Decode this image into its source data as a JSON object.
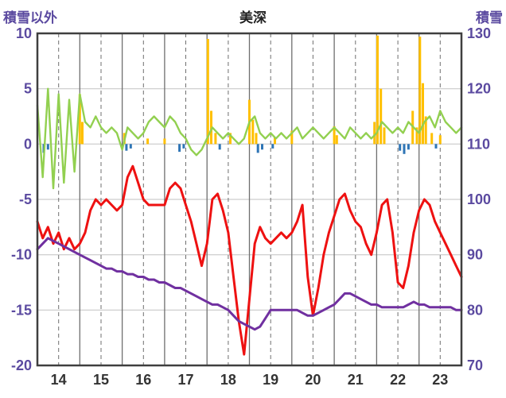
{
  "header": {
    "left_label": "積雪以外",
    "title": "美深",
    "right_label": "積雪"
  },
  "chart_data": {
    "type": "line",
    "title": "美深",
    "left_axis_label": "積雪以外",
    "right_axis_label": "積雪",
    "x_range": [
      14,
      24
    ],
    "x_tick_labels": [
      "14",
      "15",
      "16",
      "17",
      "18",
      "19",
      "20",
      "21",
      "22",
      "23"
    ],
    "left_ylim": [
      -20,
      10
    ],
    "left_yticks": [
      10,
      5,
      0,
      -5,
      -10,
      -15,
      -20
    ],
    "right_ylim": [
      70,
      130
    ],
    "right_yticks": [
      130,
      120,
      110,
      100,
      90,
      80,
      70
    ],
    "grid": true,
    "legend": "none",
    "colors": {
      "h_grid": "#c2c2c2",
      "v_grid": "#6f6f6f",
      "frame": "#3f3f3f",
      "axis_text": "#5b4aa0",
      "x_text": "#333333",
      "green": "#92d050",
      "red": "#ee1111",
      "purple": "#7030a0",
      "orange": "#ffc000",
      "blue": "#2e75b6"
    },
    "series": [
      {
        "name": "green-line",
        "axis": "left",
        "color": "#92d050",
        "width": 2.4,
        "points": [
          [
            14,
            3.5
          ],
          [
            14.125,
            -3
          ],
          [
            14.25,
            5
          ],
          [
            14.375,
            -4
          ],
          [
            14.5,
            4.5
          ],
          [
            14.625,
            -3.5
          ],
          [
            14.75,
            4
          ],
          [
            14.875,
            -2.5
          ],
          [
            15,
            4.5
          ],
          [
            15.125,
            2
          ],
          [
            15.25,
            1.5
          ],
          [
            15.375,
            2.5
          ],
          [
            15.5,
            1.5
          ],
          [
            15.625,
            1
          ],
          [
            15.75,
            1.5
          ],
          [
            15.875,
            1
          ],
          [
            16,
            -0.5
          ],
          [
            16.125,
            1.5
          ],
          [
            16.25,
            1
          ],
          [
            16.375,
            0.5
          ],
          [
            16.5,
            1
          ],
          [
            16.625,
            2
          ],
          [
            16.75,
            2.5
          ],
          [
            16.875,
            2
          ],
          [
            17,
            1.5
          ],
          [
            17.125,
            2.5
          ],
          [
            17.25,
            2
          ],
          [
            17.375,
            1
          ],
          [
            17.5,
            0.5
          ],
          [
            17.625,
            -0.5
          ],
          [
            17.75,
            -1
          ],
          [
            17.875,
            -0.5
          ],
          [
            18,
            0.5
          ],
          [
            18.125,
            1.5
          ],
          [
            18.25,
            1
          ],
          [
            18.375,
            0.5
          ],
          [
            18.5,
            1
          ],
          [
            18.625,
            0.5
          ],
          [
            18.75,
            0
          ],
          [
            18.875,
            0.5
          ],
          [
            19,
            2
          ],
          [
            19.125,
            2.5
          ],
          [
            19.25,
            1
          ],
          [
            19.375,
            0.5
          ],
          [
            19.5,
            1
          ],
          [
            19.625,
            0.5
          ],
          [
            19.75,
            1
          ],
          [
            19.875,
            0.5
          ],
          [
            20,
            1
          ],
          [
            20.125,
            1.5
          ],
          [
            20.25,
            0.5
          ],
          [
            20.375,
            1
          ],
          [
            20.5,
            1.5
          ],
          [
            20.625,
            1
          ],
          [
            20.75,
            0.5
          ],
          [
            20.875,
            1
          ],
          [
            21,
            1.5
          ],
          [
            21.125,
            1
          ],
          [
            21.25,
            0.5
          ],
          [
            21.375,
            1.5
          ],
          [
            21.5,
            1
          ],
          [
            21.625,
            0.5
          ],
          [
            21.75,
            1
          ],
          [
            21.875,
            0.5
          ],
          [
            22,
            1
          ],
          [
            22.125,
            2
          ],
          [
            22.25,
            1.5
          ],
          [
            22.375,
            1
          ],
          [
            22.5,
            1.5
          ],
          [
            22.625,
            1
          ],
          [
            22.75,
            2
          ],
          [
            22.875,
            1.5
          ],
          [
            23,
            1
          ],
          [
            23.125,
            2
          ],
          [
            23.25,
            2.5
          ],
          [
            23.375,
            1.5
          ],
          [
            23.5,
            3
          ],
          [
            23.625,
            2
          ],
          [
            23.75,
            1.5
          ],
          [
            23.875,
            1
          ],
          [
            24,
            1.5
          ]
        ]
      },
      {
        "name": "red-line",
        "axis": "left",
        "color": "#ee1111",
        "width": 3,
        "points": [
          [
            14,
            -7
          ],
          [
            14.125,
            -8.5
          ],
          [
            14.25,
            -7.5
          ],
          [
            14.375,
            -9
          ],
          [
            14.5,
            -8
          ],
          [
            14.625,
            -9.5
          ],
          [
            14.75,
            -8.5
          ],
          [
            14.875,
            -9.5
          ],
          [
            15,
            -9
          ],
          [
            15.125,
            -8
          ],
          [
            15.25,
            -6
          ],
          [
            15.375,
            -5
          ],
          [
            15.5,
            -5.5
          ],
          [
            15.625,
            -5
          ],
          [
            15.75,
            -5.5
          ],
          [
            15.875,
            -6
          ],
          [
            16,
            -5.5
          ],
          [
            16.125,
            -3
          ],
          [
            16.25,
            -2
          ],
          [
            16.375,
            -3.5
          ],
          [
            16.5,
            -5
          ],
          [
            16.625,
            -5.5
          ],
          [
            16.75,
            -5.5
          ],
          [
            16.875,
            -5.5
          ],
          [
            17,
            -5.5
          ],
          [
            17.125,
            -4
          ],
          [
            17.25,
            -3.5
          ],
          [
            17.375,
            -4
          ],
          [
            17.5,
            -5.5
          ],
          [
            17.625,
            -7
          ],
          [
            17.75,
            -9
          ],
          [
            17.875,
            -11
          ],
          [
            18,
            -9
          ],
          [
            18.125,
            -5
          ],
          [
            18.25,
            -4.5
          ],
          [
            18.375,
            -6
          ],
          [
            18.5,
            -8
          ],
          [
            18.625,
            -12
          ],
          [
            18.75,
            -16
          ],
          [
            18.875,
            -19
          ],
          [
            19,
            -14
          ],
          [
            19.125,
            -9
          ],
          [
            19.25,
            -7.5
          ],
          [
            19.375,
            -8.5
          ],
          [
            19.5,
            -9
          ],
          [
            19.625,
            -8.5
          ],
          [
            19.75,
            -8
          ],
          [
            19.875,
            -8.5
          ],
          [
            20,
            -8
          ],
          [
            20.125,
            -7
          ],
          [
            20.25,
            -5.5
          ],
          [
            20.375,
            -12
          ],
          [
            20.5,
            -15.5
          ],
          [
            20.625,
            -13
          ],
          [
            20.75,
            -10
          ],
          [
            20.875,
            -8
          ],
          [
            21,
            -6.5
          ],
          [
            21.125,
            -5
          ],
          [
            21.25,
            -4.5
          ],
          [
            21.375,
            -6
          ],
          [
            21.5,
            -7
          ],
          [
            21.625,
            -7.5
          ],
          [
            21.75,
            -9
          ],
          [
            21.875,
            -10
          ],
          [
            22,
            -8
          ],
          [
            22.125,
            -5.5
          ],
          [
            22.25,
            -5
          ],
          [
            22.375,
            -8
          ],
          [
            22.5,
            -12.5
          ],
          [
            22.625,
            -13
          ],
          [
            22.75,
            -11
          ],
          [
            22.875,
            -8
          ],
          [
            23,
            -6
          ],
          [
            23.125,
            -5
          ],
          [
            23.25,
            -5.5
          ],
          [
            23.375,
            -7
          ],
          [
            23.5,
            -8
          ],
          [
            23.625,
            -9
          ],
          [
            23.75,
            -10
          ],
          [
            23.875,
            -11
          ],
          [
            24,
            -12
          ]
        ]
      },
      {
        "name": "purple-line",
        "axis": "right",
        "color": "#7030a0",
        "width": 3,
        "points": [
          [
            14,
            91
          ],
          [
            14.125,
            92
          ],
          [
            14.25,
            93
          ],
          [
            14.375,
            92.5
          ],
          [
            14.5,
            92
          ],
          [
            14.625,
            91.5
          ],
          [
            14.75,
            91
          ],
          [
            14.875,
            90.5
          ],
          [
            15,
            90
          ],
          [
            15.125,
            89.5
          ],
          [
            15.25,
            89
          ],
          [
            15.375,
            88.5
          ],
          [
            15.5,
            88
          ],
          [
            15.625,
            87.5
          ],
          [
            15.75,
            87.5
          ],
          [
            15.875,
            87
          ],
          [
            16,
            87
          ],
          [
            16.125,
            86.5
          ],
          [
            16.25,
            86.5
          ],
          [
            16.375,
            86
          ],
          [
            16.5,
            86
          ],
          [
            16.625,
            85.5
          ],
          [
            16.75,
            85.5
          ],
          [
            16.875,
            85
          ],
          [
            17,
            85
          ],
          [
            17.125,
            84.5
          ],
          [
            17.25,
            84
          ],
          [
            17.375,
            84
          ],
          [
            17.5,
            83.5
          ],
          [
            17.625,
            83
          ],
          [
            17.75,
            82.5
          ],
          [
            17.875,
            82
          ],
          [
            18,
            81.5
          ],
          [
            18.125,
            81
          ],
          [
            18.25,
            81
          ],
          [
            18.375,
            80.5
          ],
          [
            18.5,
            80
          ],
          [
            18.625,
            79
          ],
          [
            18.75,
            78
          ],
          [
            18.875,
            77.5
          ],
          [
            19,
            77
          ],
          [
            19.125,
            76.5
          ],
          [
            19.25,
            77
          ],
          [
            19.375,
            78.5
          ],
          [
            19.5,
            80
          ],
          [
            19.625,
            80
          ],
          [
            19.75,
            80
          ],
          [
            19.875,
            80
          ],
          [
            20,
            80
          ],
          [
            20.125,
            80
          ],
          [
            20.25,
            79.5
          ],
          [
            20.375,
            79
          ],
          [
            20.5,
            79
          ],
          [
            20.625,
            79.5
          ],
          [
            20.75,
            80
          ],
          [
            20.875,
            80.5
          ],
          [
            21,
            81
          ],
          [
            21.125,
            82
          ],
          [
            21.25,
            83
          ],
          [
            21.375,
            83
          ],
          [
            21.5,
            82.5
          ],
          [
            21.625,
            82
          ],
          [
            21.75,
            81.5
          ],
          [
            21.875,
            81
          ],
          [
            22,
            81
          ],
          [
            22.125,
            80.5
          ],
          [
            22.25,
            80.5
          ],
          [
            22.375,
            80.5
          ],
          [
            22.5,
            80.5
          ],
          [
            22.625,
            80.5
          ],
          [
            22.75,
            81
          ],
          [
            22.875,
            81.5
          ],
          [
            23,
            81
          ],
          [
            23.125,
            81
          ],
          [
            23.25,
            80.5
          ],
          [
            23.375,
            80.5
          ],
          [
            23.5,
            80.5
          ],
          [
            23.625,
            80.5
          ],
          [
            23.75,
            80.5
          ],
          [
            23.875,
            80
          ],
          [
            24,
            80
          ]
        ]
      }
    ],
    "bars": [
      {
        "name": "orange-bars",
        "axis": "left",
        "color": "#ffc000",
        "points": [
          [
            15,
            4.5
          ],
          [
            15.06,
            2
          ],
          [
            16.05,
            1
          ],
          [
            16.6,
            0.5
          ],
          [
            17,
            0.5
          ],
          [
            18.02,
            9.5
          ],
          [
            18.1,
            3
          ],
          [
            18.2,
            1
          ],
          [
            18.55,
            1
          ],
          [
            19,
            4
          ],
          [
            19.08,
            2.2
          ],
          [
            19.16,
            1
          ],
          [
            19.6,
            0.6
          ],
          [
            20,
            1.2
          ],
          [
            21,
            1.6
          ],
          [
            21.06,
            0.8
          ],
          [
            21.95,
            2
          ],
          [
            22.02,
            9.8
          ],
          [
            22.1,
            5
          ],
          [
            22.18,
            1.5
          ],
          [
            22.85,
            3
          ],
          [
            22.95,
            1.5
          ],
          [
            23.02,
            9.7
          ],
          [
            23.09,
            5.5
          ],
          [
            23.16,
            2.5
          ],
          [
            23.3,
            1
          ],
          [
            23.5,
            0.8
          ]
        ]
      },
      {
        "name": "blue-bars",
        "axis": "left",
        "color": "#2e75b6",
        "points": [
          [
            14.15,
            -0.8
          ],
          [
            14.25,
            -0.5
          ],
          [
            16.1,
            -0.6
          ],
          [
            16.2,
            -0.4
          ],
          [
            17.35,
            -0.7
          ],
          [
            17.45,
            -0.4
          ],
          [
            18.3,
            -0.5
          ],
          [
            19.2,
            -0.8
          ],
          [
            19.3,
            -0.5
          ],
          [
            19.55,
            -0.4
          ],
          [
            22.55,
            -0.6
          ],
          [
            22.65,
            -0.9
          ],
          [
            22.75,
            -0.5
          ],
          [
            23.4,
            -0.4
          ]
        ]
      }
    ]
  }
}
